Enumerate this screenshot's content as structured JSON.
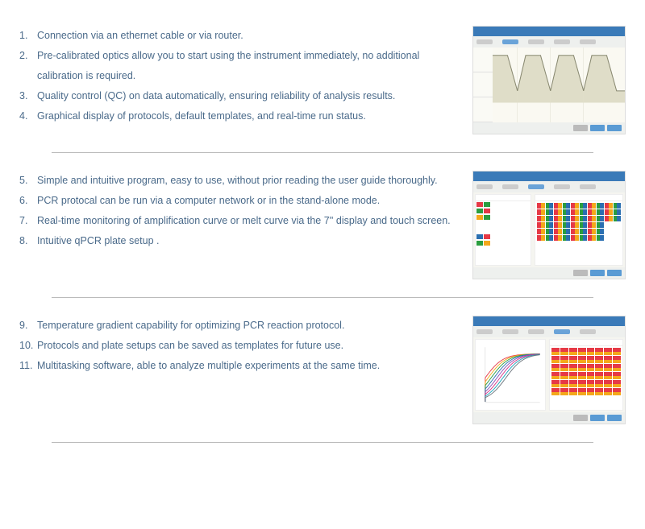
{
  "sections": [
    {
      "items": [
        {
          "num": "1.",
          "text": "Connection via an ethernet cable or via router."
        },
        {
          "num": "2.",
          "text": "Pre-calibrated optics allow you to start using the instrument immediately, no additional calibration is required."
        },
        {
          "num": "3.",
          "text": "Quality control (QC) on data automatically, ensuring reliability of analysis results."
        },
        {
          "num": "4.",
          "text": "Graphical display of protocols, default templates, and  real-time run status."
        }
      ]
    },
    {
      "items": [
        {
          "num": "5.",
          "text": "Simple and  intuitive program, easy to use, without prior reading the user guide thoroughly."
        },
        {
          "num": "6.",
          "text": "PCR protocal can be run via a computer network or in the stand-alone mode."
        },
        {
          "num": "7.",
          "text": "Real-time monitoring of amplification curve or melt curve via the 7'' display and touch screen."
        },
        {
          "num": "8.",
          "text": "Intuitive qPCR plate setup ."
        }
      ]
    },
    {
      "items": [
        {
          "num": "9.",
          "text": "Temperature gradient capability for optimizing PCR reaction protocol."
        },
        {
          "num": "10.",
          "text": "Protocols and  plate setups can be saved as templates for future use."
        },
        {
          "num": "11.",
          "text": "Multitasking software, able to analyze multiple experiments at the same time."
        }
      ]
    }
  ],
  "colors": {
    "text": "#4a6a8a",
    "header_blue": "#3a7ab8",
    "btn_blue": "#5a9bd4",
    "divider": "#bbbbbb"
  },
  "thumb2": {
    "targets": [
      [
        "#e63946",
        "#2a9d3f"
      ],
      [
        "#2a9d3f",
        "#e63946"
      ],
      [
        "#f4a81b",
        "#2a9d3f"
      ]
    ],
    "targets2": [
      [
        "#2a6fb0",
        "#e63946"
      ],
      [
        "#2a9d3f",
        "#f4a81b"
      ]
    ],
    "well_colors": {
      "top": "#e63946",
      "bot": "#f4a81b",
      "alt_top": "#2a9d3f",
      "alt_bot": "#2a6fb0"
    }
  },
  "thumb3": {
    "curve_colors": [
      "#e63946",
      "#f4a81b",
      "#2a9d3f",
      "#2a6fb0",
      "#8a4fb8",
      "#d63384",
      "#17a2b8",
      "#6c757d"
    ],
    "well_top": "#e63946",
    "well_bot": "#f4a81b"
  }
}
